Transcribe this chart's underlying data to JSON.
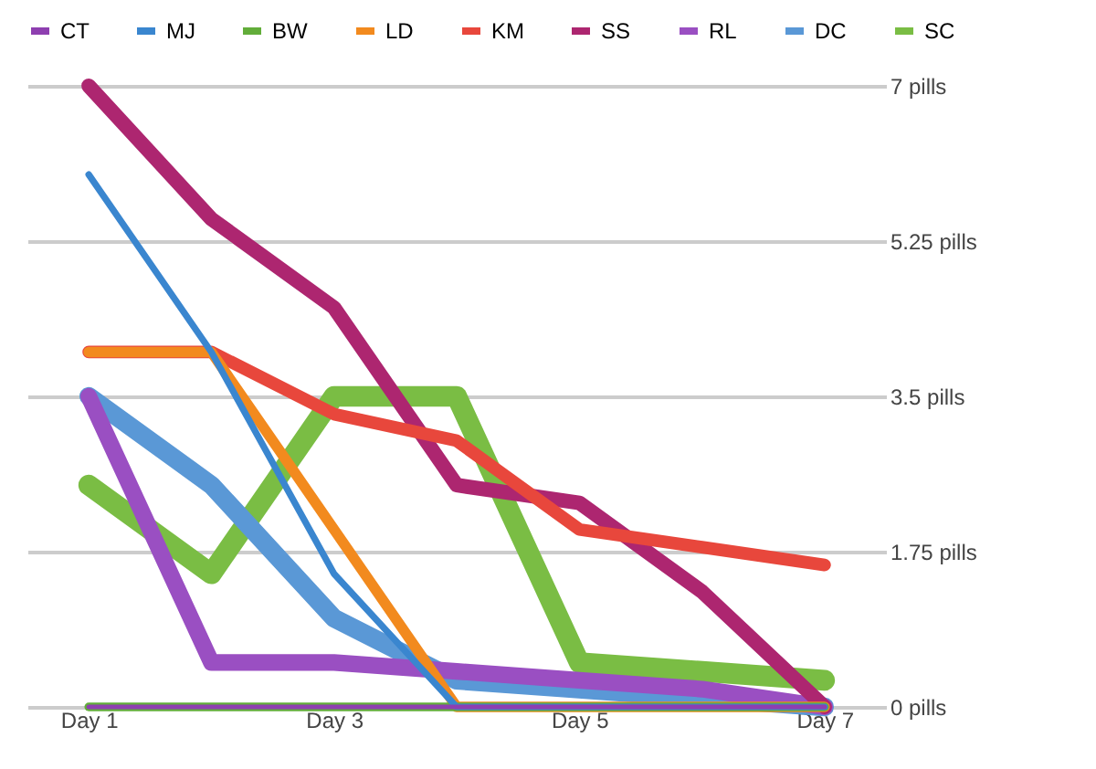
{
  "chart_data": {
    "type": "line",
    "categories": [
      "Day 1",
      null,
      "Day 3",
      null,
      "Day 5",
      null,
      "Day 7"
    ],
    "series": [
      {
        "name": "CT",
        "color": "#8e3fb0",
        "values": [
          0,
          0,
          0,
          0,
          0,
          0,
          0
        ]
      },
      {
        "name": "MJ",
        "color": "#3a86cf",
        "values": [
          6,
          4,
          1.5,
          0,
          0,
          0,
          0
        ]
      },
      {
        "name": "BW",
        "color": "#62ad3a",
        "values": [
          0,
          0,
          0,
          0,
          0,
          0,
          0
        ]
      },
      {
        "name": "LD",
        "color": "#f28a1e",
        "values": [
          4,
          4,
          2,
          0,
          0,
          0,
          0
        ]
      },
      {
        "name": "KM",
        "color": "#e8473c",
        "values": [
          4,
          4,
          3.3,
          3,
          2,
          1.8,
          1.6
        ]
      },
      {
        "name": "SS",
        "color": "#ad2670",
        "values": [
          7,
          5.5,
          4.5,
          2.5,
          2.3,
          1.3,
          0
        ]
      },
      {
        "name": "RL",
        "color": "#9a4fc2",
        "values": [
          3.5,
          0.5,
          0.5,
          0.4,
          0.3,
          0.2,
          0
        ]
      },
      {
        "name": "DC",
        "color": "#5a98d6",
        "values": [
          3.5,
          2.5,
          1,
          0.3,
          0.2,
          0.1,
          0
        ]
      },
      {
        "name": "SC",
        "color": "#7abd44",
        "values": [
          2.5,
          1.5,
          3.5,
          3.5,
          0.5,
          0.4,
          0.3
        ]
      }
    ],
    "ylim": [
      0,
      7
    ],
    "yticks": [
      {
        "value": 0,
        "label": "0 pills"
      },
      {
        "value": 1.75,
        "label": "1.75 pills"
      },
      {
        "value": 3.5,
        "label": "3.5 pills"
      },
      {
        "value": 5.25,
        "label": "5.25 pills"
      },
      {
        "value": 7,
        "label": "7 pills"
      }
    ],
    "grid": "y",
    "legend": "top",
    "line_style": "solid"
  }
}
